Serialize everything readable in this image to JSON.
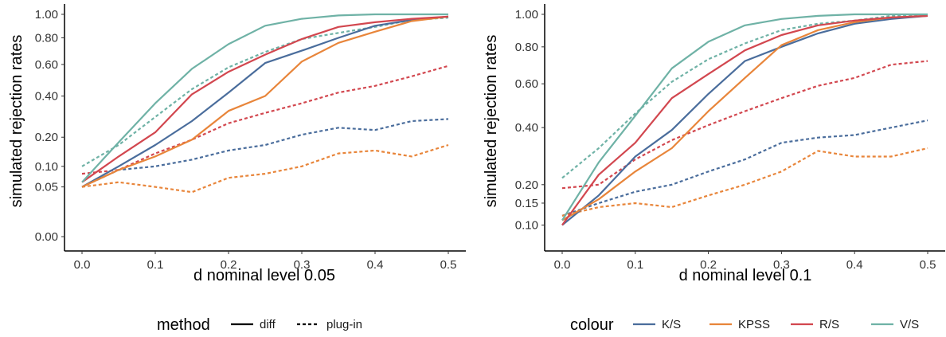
{
  "colors": {
    "K/S": "#4a6d9c",
    "KPSS": "#e8853a",
    "R/S": "#d2474f",
    "V/S": "#6fb2a6"
  },
  "legend_method": {
    "title": "method",
    "items": [
      {
        "label": "diff",
        "dash": "solid"
      },
      {
        "label": "plug-in",
        "dash": "dashed"
      }
    ]
  },
  "legend_colour": {
    "title": "colour",
    "items": [
      "K/S",
      "KPSS",
      "R/S",
      "V/S"
    ]
  },
  "chart_data": [
    {
      "type": "line",
      "xlabel": "d nominal level 0.05",
      "ylabel": "simulated rejection rates",
      "x": [
        0.0,
        0.05,
        0.1,
        0.15,
        0.2,
        0.25,
        0.3,
        0.35,
        0.4,
        0.45,
        0.5
      ],
      "x_ticks": [
        "0.0",
        "0.1",
        "0.2",
        "0.3",
        "0.4",
        "0.5"
      ],
      "x_tick_values": [
        0.0,
        0.1,
        0.2,
        0.3,
        0.4,
        0.5
      ],
      "y_scale": "sqrt",
      "y_ticks": [
        "0.00",
        "0.05",
        "0.10",
        "0.20",
        "0.40",
        "0.60",
        "0.80",
        "1.00"
      ],
      "y_tick_values": [
        0.0,
        0.05,
        0.1,
        0.2,
        0.4,
        0.6,
        0.8,
        1.0
      ],
      "ylim": [
        0,
        1
      ],
      "grid": false,
      "series": [
        {
          "name": "K/S",
          "method": "diff",
          "values": [
            0.05,
            0.1,
            0.17,
            0.27,
            0.42,
            0.61,
            0.7,
            0.8,
            0.9,
            0.95,
            0.98
          ]
        },
        {
          "name": "KPSS",
          "method": "diff",
          "values": [
            0.05,
            0.09,
            0.13,
            0.19,
            0.32,
            0.4,
            0.62,
            0.76,
            0.85,
            0.94,
            0.98
          ]
        },
        {
          "name": "R/S",
          "method": "diff",
          "values": [
            0.06,
            0.13,
            0.22,
            0.41,
            0.55,
            0.67,
            0.79,
            0.89,
            0.93,
            0.96,
            0.98
          ]
        },
        {
          "name": "V/S",
          "method": "diff",
          "values": [
            0.06,
            0.18,
            0.36,
            0.57,
            0.75,
            0.9,
            0.96,
            0.99,
            1.0,
            1.0,
            1.0
          ]
        },
        {
          "name": "K/S",
          "method": "plug-in",
          "values": [
            0.05,
            0.09,
            0.1,
            0.12,
            0.15,
            0.17,
            0.21,
            0.24,
            0.23,
            0.27,
            0.28
          ]
        },
        {
          "name": "KPSS",
          "method": "plug-in",
          "values": [
            0.05,
            0.06,
            0.05,
            0.04,
            0.07,
            0.08,
            0.1,
            0.14,
            0.15,
            0.13,
            0.17
          ]
        },
        {
          "name": "R/S",
          "method": "plug-in",
          "values": [
            0.08,
            0.09,
            0.14,
            0.19,
            0.26,
            0.31,
            0.36,
            0.42,
            0.46,
            0.52,
            0.59
          ]
        },
        {
          "name": "V/S",
          "method": "plug-in",
          "values": [
            0.1,
            0.17,
            0.29,
            0.44,
            0.58,
            0.69,
            0.79,
            0.84,
            0.89,
            0.95,
            0.97
          ]
        }
      ]
    },
    {
      "type": "line",
      "xlabel": "d nominal level 0.1",
      "ylabel": "simulated rejection rates",
      "x": [
        0.0,
        0.05,
        0.1,
        0.15,
        0.2,
        0.25,
        0.3,
        0.35,
        0.4,
        0.45,
        0.5
      ],
      "x_ticks": [
        "0.0",
        "0.1",
        "0.2",
        "0.3",
        "0.4",
        "0.5"
      ],
      "x_tick_values": [
        0.0,
        0.1,
        0.2,
        0.3,
        0.4,
        0.5
      ],
      "y_scale": "sqrt",
      "y_ticks": [
        "0.10",
        "0.15",
        "0.20",
        "0.40",
        "0.60",
        "0.80",
        "1.00"
      ],
      "y_tick_values": [
        0.1,
        0.15,
        0.2,
        0.4,
        0.6,
        0.8,
        1.0
      ],
      "ylim": [
        0.085,
        1
      ],
      "grid": false,
      "series": [
        {
          "name": "K/S",
          "method": "diff",
          "values": [
            0.1,
            0.17,
            0.29,
            0.39,
            0.55,
            0.72,
            0.8,
            0.88,
            0.94,
            0.97,
            0.99
          ]
        },
        {
          "name": "KPSS",
          "method": "diff",
          "values": [
            0.11,
            0.16,
            0.24,
            0.32,
            0.47,
            0.63,
            0.81,
            0.9,
            0.95,
            0.98,
            0.99
          ]
        },
        {
          "name": "R/S",
          "method": "diff",
          "values": [
            0.1,
            0.23,
            0.34,
            0.53,
            0.65,
            0.78,
            0.87,
            0.93,
            0.96,
            0.98,
            0.99
          ]
        },
        {
          "name": "V/S",
          "method": "diff",
          "values": [
            0.11,
            0.27,
            0.45,
            0.68,
            0.83,
            0.93,
            0.97,
            0.99,
            1.0,
            1.0,
            1.0
          ]
        },
        {
          "name": "K/S",
          "method": "plug-in",
          "values": [
            0.12,
            0.15,
            0.18,
            0.2,
            0.24,
            0.28,
            0.34,
            0.36,
            0.37,
            0.4,
            0.43
          ]
        },
        {
          "name": "KPSS",
          "method": "plug-in",
          "values": [
            0.12,
            0.14,
            0.15,
            0.14,
            0.17,
            0.2,
            0.24,
            0.31,
            0.29,
            0.29,
            0.32
          ]
        },
        {
          "name": "R/S",
          "method": "plug-in",
          "values": [
            0.19,
            0.2,
            0.28,
            0.35,
            0.41,
            0.47,
            0.53,
            0.59,
            0.63,
            0.7,
            0.72
          ]
        },
        {
          "name": "V/S",
          "method": "plug-in",
          "values": [
            0.22,
            0.32,
            0.46,
            0.61,
            0.73,
            0.82,
            0.9,
            0.94,
            0.96,
            0.99,
            0.99
          ]
        }
      ]
    }
  ]
}
